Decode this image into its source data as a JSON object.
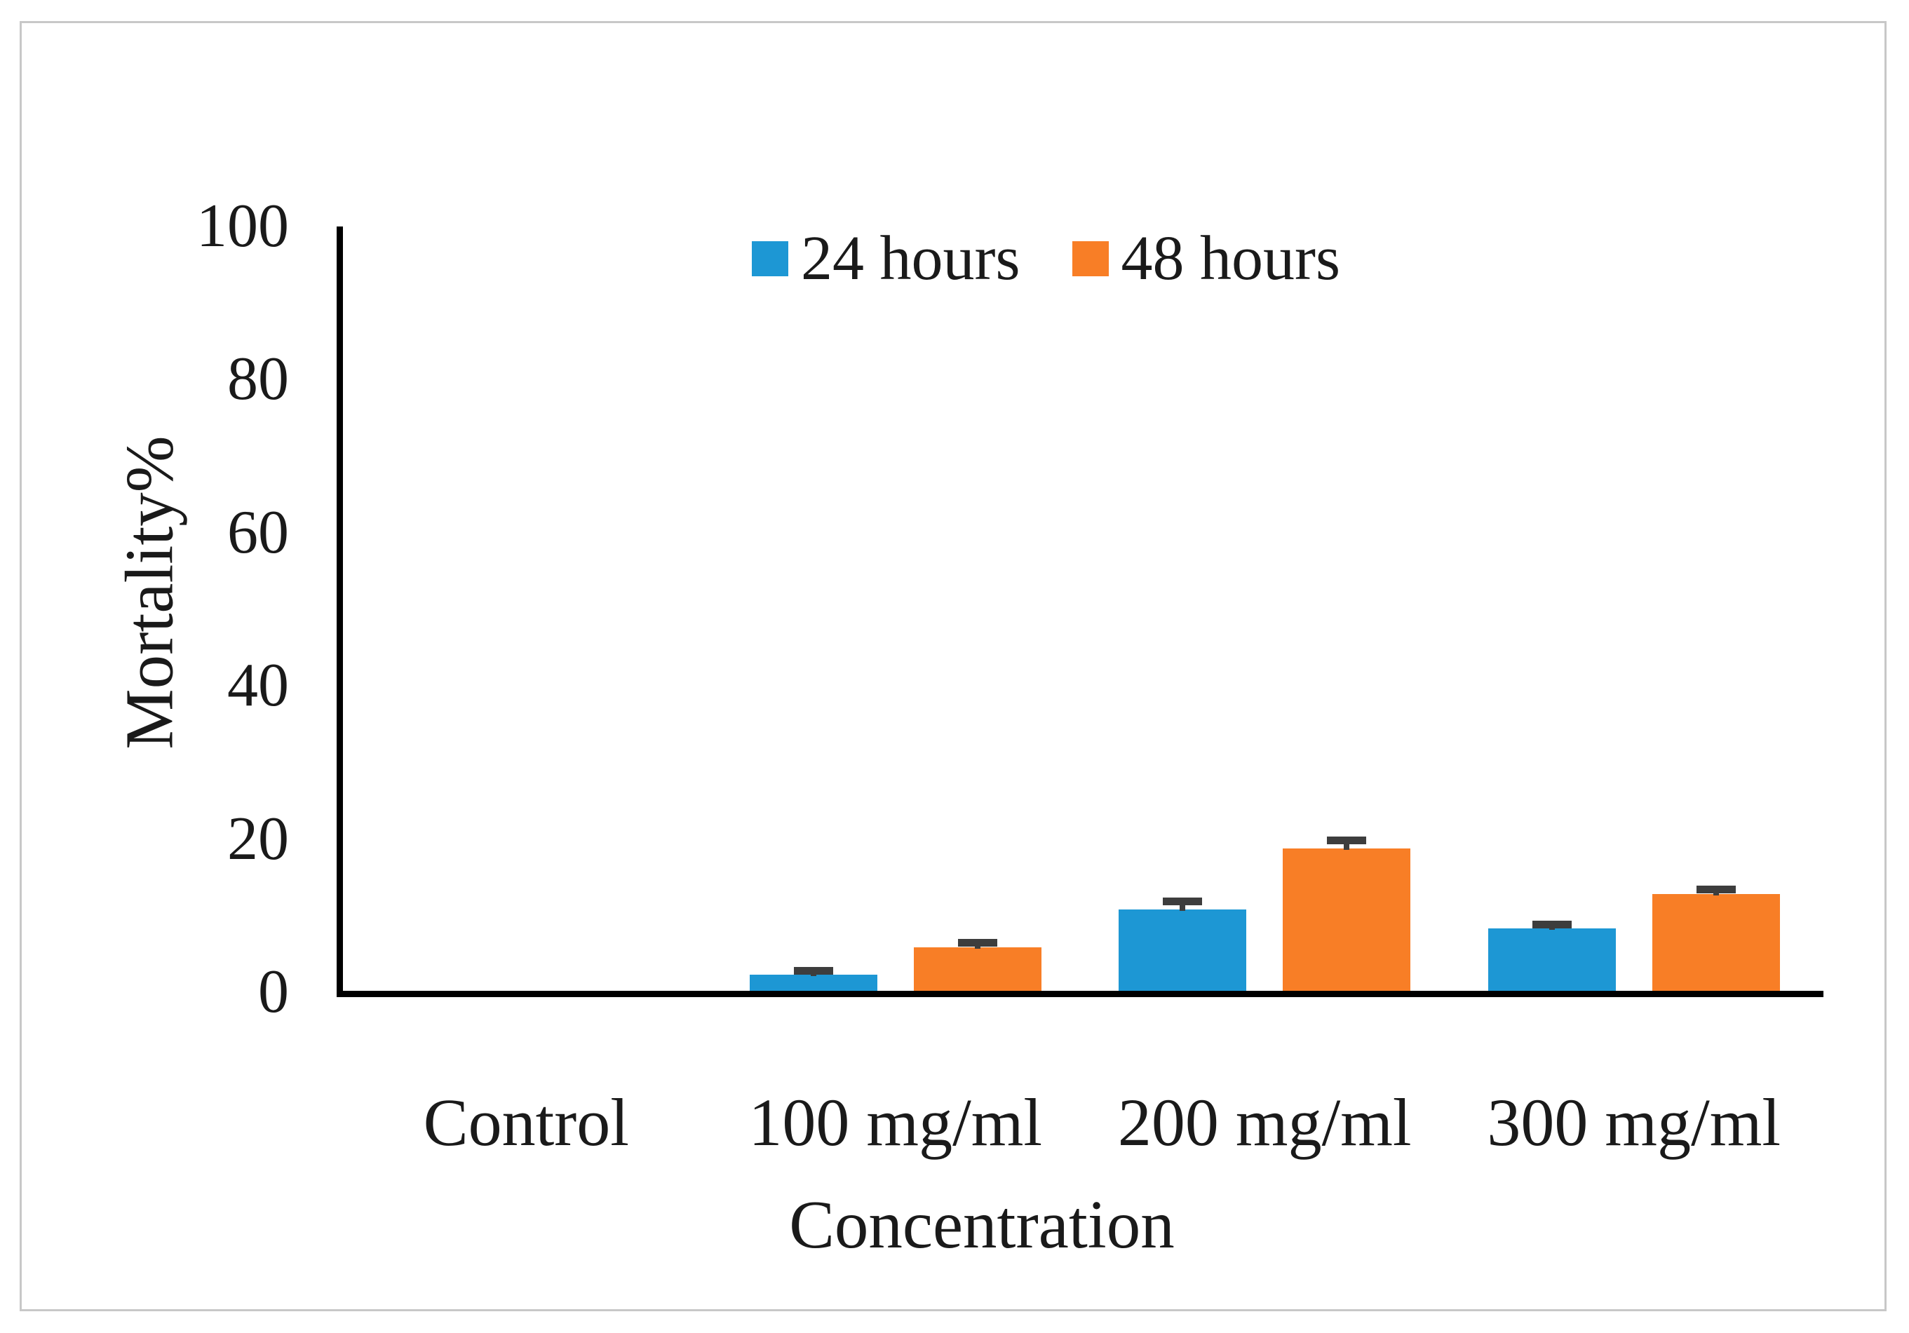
{
  "figure": {
    "background_color": "#ffffff",
    "border_color": "#c8c8c8",
    "text_color": "#1a1a1a"
  },
  "chart_data": {
    "type": "bar",
    "title": "",
    "categories": [
      "Control",
      "100 mg/ml",
      "200 mg/ml",
      "300 mg/ml"
    ],
    "series": [
      {
        "name": "24 hours",
        "color": "#1d97d4",
        "values": [
          0,
          2.5,
          11,
          8.5
        ],
        "errors": [
          0,
          0.5,
          1,
          0.5
        ]
      },
      {
        "name": "48 hours",
        "color": "#f87e26",
        "values": [
          0,
          6,
          19,
          13
        ],
        "errors": [
          0,
          0.6,
          1,
          0.6
        ]
      }
    ],
    "xlabel": "Concentration",
    "ylabel": "Mortality%",
    "ylim": [
      0,
      100
    ],
    "yticks": [
      0,
      20,
      40,
      60,
      80,
      100
    ],
    "grid": false,
    "legend_position": "top-center",
    "error_bar_color": "#3d3d3d",
    "axis_color": "#000000"
  }
}
